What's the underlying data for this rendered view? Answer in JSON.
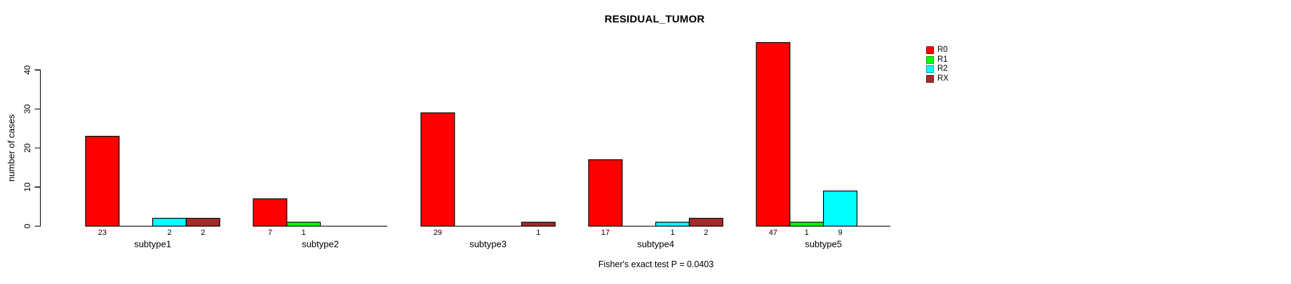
{
  "title": "RESIDUAL_TUMOR",
  "footnote": "Fisher's exact test P = 0.0403",
  "ylabel": "number of cases",
  "legend": {
    "position": "top-right",
    "entries": [
      {
        "label": "R0",
        "color": "#FF0000"
      },
      {
        "label": "R1",
        "color": "#00FF00"
      },
      {
        "label": "R2",
        "color": "#00FFFF"
      },
      {
        "label": "RX",
        "color": "#A52A2A"
      }
    ]
  },
  "chart_data": {
    "type": "bar",
    "title": "RESIDUAL_TUMOR",
    "subtitle": "",
    "xlabel": "",
    "ylabel": "number of cases",
    "annotation": "Fisher's exact test P = 0.0403",
    "categories": [
      "subtype1",
      "subtype2",
      "subtype3",
      "subtype4",
      "subtype5"
    ],
    "series": [
      {
        "name": "R0",
        "color": "#FF0000",
        "values": [
          23,
          7,
          29,
          17,
          47
        ]
      },
      {
        "name": "R1",
        "color": "#00FF00",
        "values": [
          0,
          1,
          0,
          0,
          1
        ]
      },
      {
        "name": "R2",
        "color": "#00FFFF",
        "values": [
          2,
          0,
          0,
          1,
          9
        ]
      },
      {
        "name": "RX",
        "color": "#A52A2A",
        "values": [
          2,
          0,
          1,
          2,
          0
        ]
      }
    ],
    "bar_value_labels_shown_for": "nonzero bars only",
    "yticks": [
      0,
      10,
      20,
      30,
      40
    ],
    "ylim": [
      0,
      47
    ],
    "grid": false,
    "legend_position": "top-right",
    "bar_edge_color": "#000000",
    "background": "#ffffff"
  }
}
